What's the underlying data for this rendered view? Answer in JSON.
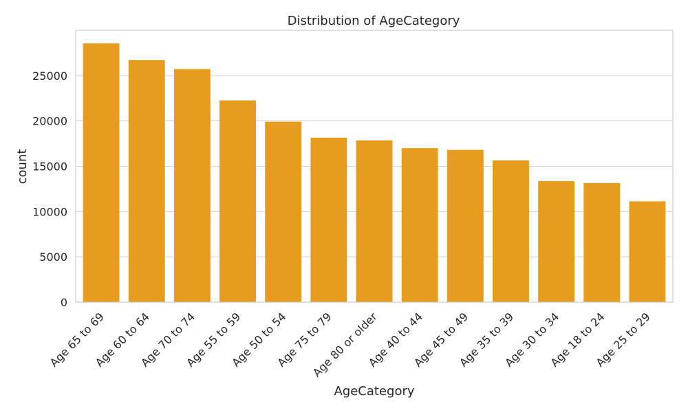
{
  "chart_data": {
    "type": "bar",
    "title": "Distribution of AgeCategory",
    "xlabel": "AgeCategory",
    "ylabel": "count",
    "categories": [
      "Age 65 to 69",
      "Age 60 to 64",
      "Age 70 to 74",
      "Age 55 to 59",
      "Age 50 to 54",
      "Age 75 to 79",
      "Age 80 or older",
      "Age 40 to 44",
      "Age 45 to 49",
      "Age 35 to 39",
      "Age 30 to 34",
      "Age 18 to 24",
      "Age 25 to 29"
    ],
    "values": [
      28550,
      26720,
      25720,
      22260,
      19920,
      18150,
      17850,
      17000,
      16810,
      15640,
      13360,
      13140,
      11130
    ],
    "ylim": [
      0,
      30000
    ],
    "yticks": [
      0,
      5000,
      10000,
      15000,
      20000,
      25000
    ],
    "grid": "horizontal",
    "bar_color": "#e69c1e",
    "legend": "none"
  }
}
